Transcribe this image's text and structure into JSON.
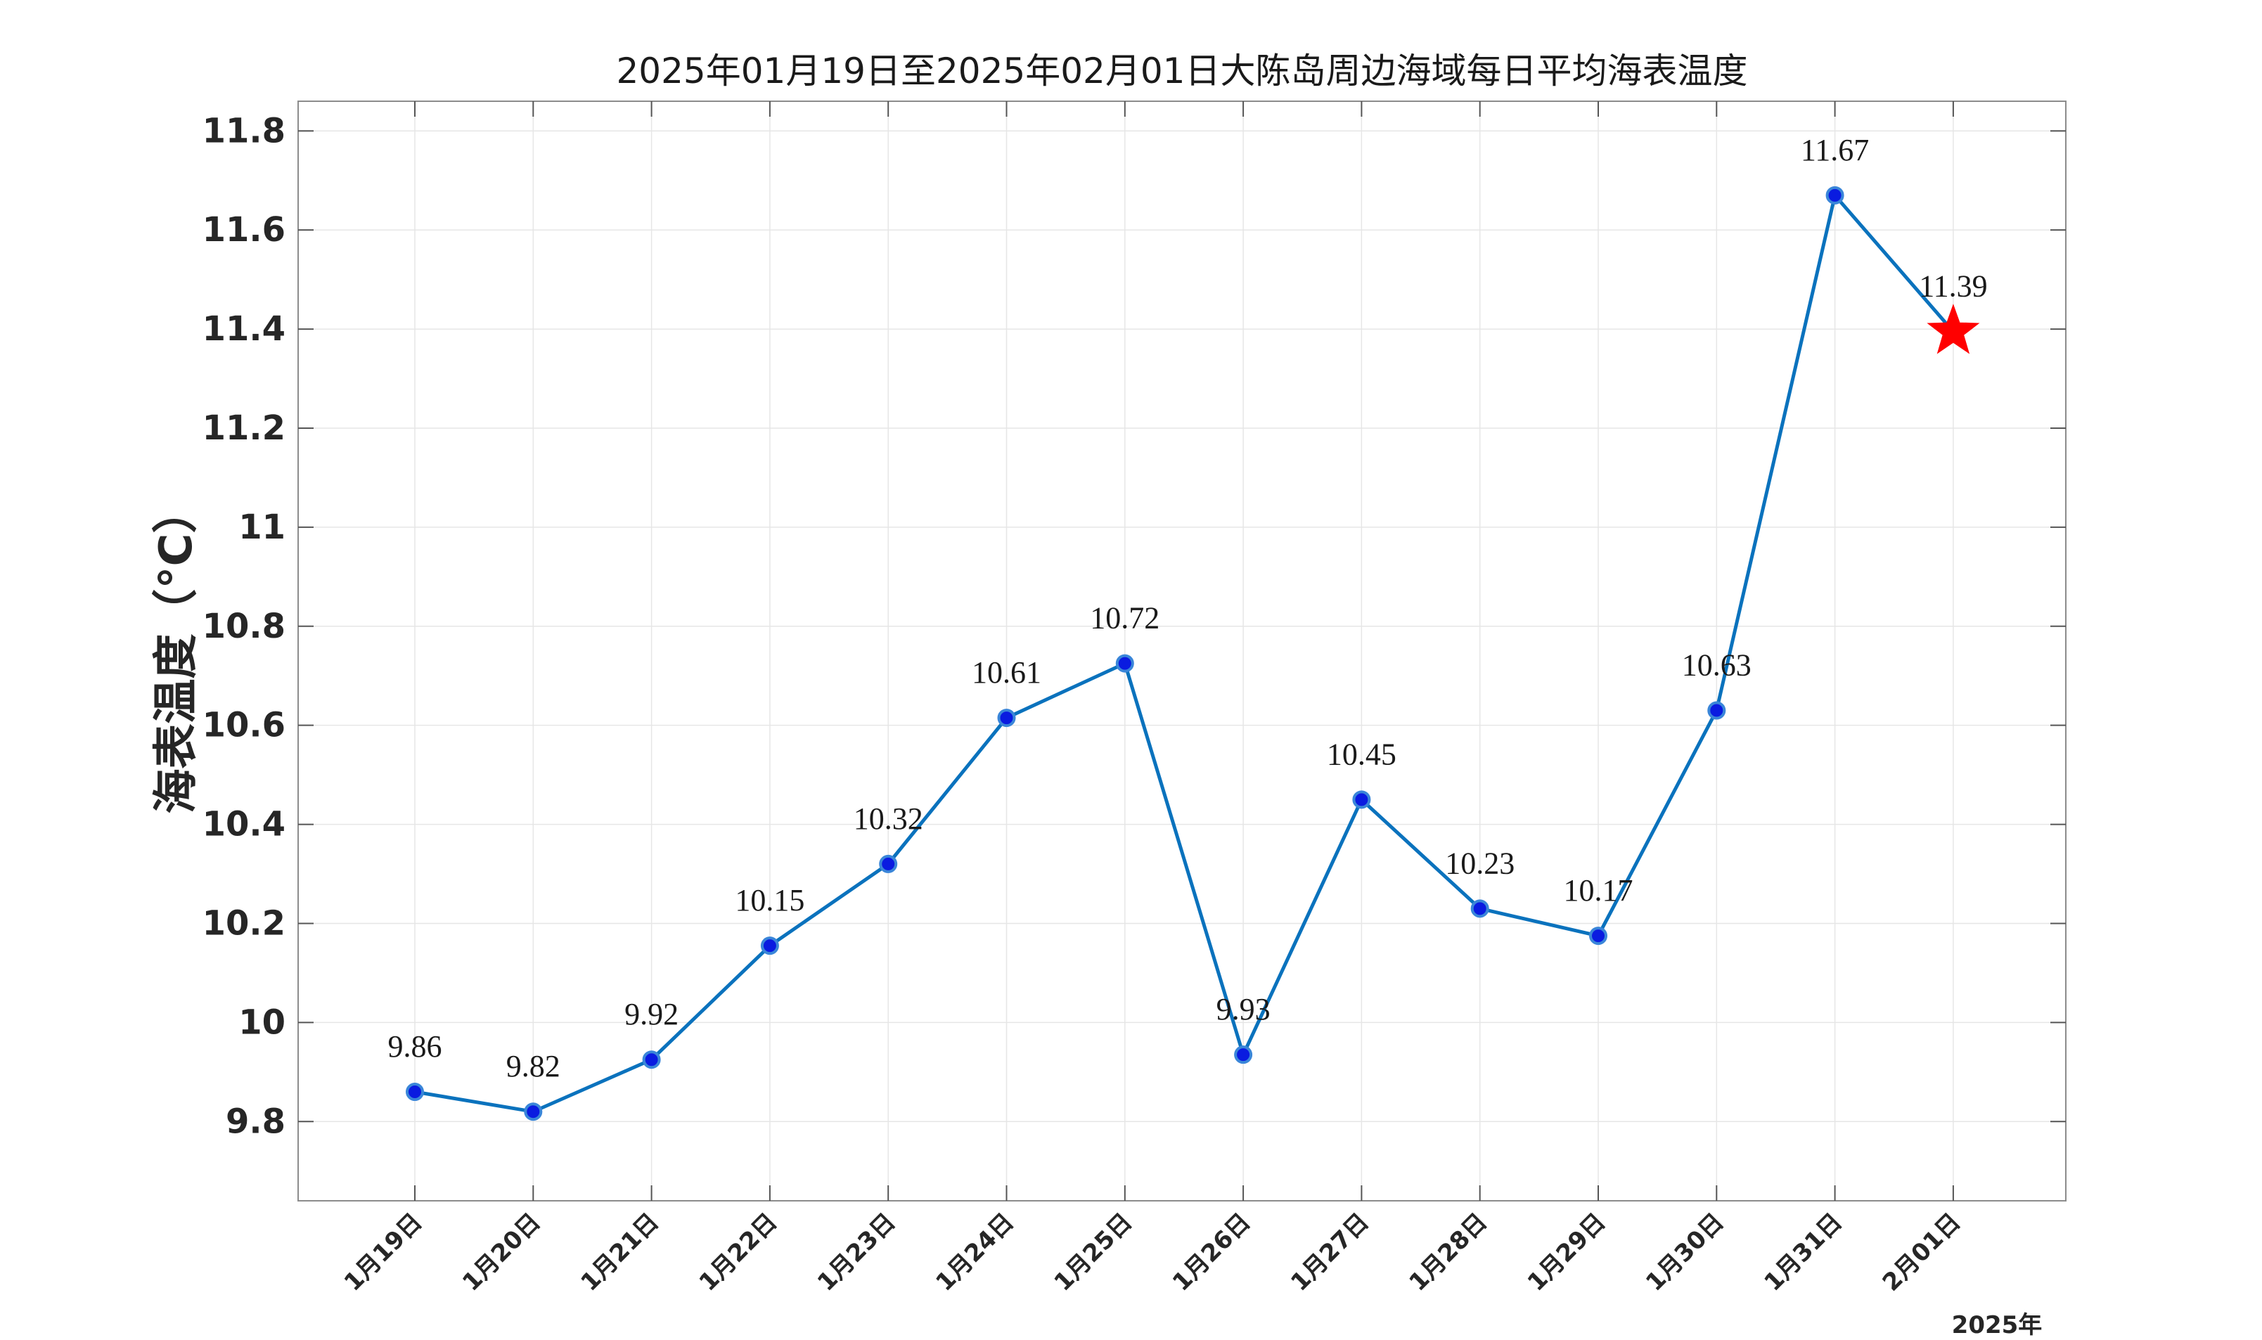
{
  "chart_data": {
    "type": "line",
    "title": "2025年01月19日至2025年02月01日大陈岛周边海域每日平均海表温度",
    "ylabel": "海表温度（°C）",
    "xlabel": "",
    "year_note": "2025年",
    "ylim": [
      9.64,
      11.86
    ],
    "yticks": [
      9.8,
      10,
      10.2,
      10.4,
      10.6,
      10.8,
      11,
      11.2,
      11.4,
      11.6,
      11.8
    ],
    "ytick_labels": [
      "9.8",
      "10",
      "10.2",
      "10.4",
      "10.6",
      "10.8",
      "11",
      "11.2",
      "11.4",
      "11.6",
      "11.8"
    ],
    "categories": [
      "1月19日",
      "1月20日",
      "1月21日",
      "1月22日",
      "1月23日",
      "1月24日",
      "1月25日",
      "1月26日",
      "1月27日",
      "1月28日",
      "1月29日",
      "1月30日",
      "1月31日",
      "2月01日"
    ],
    "values": [
      9.86,
      9.82,
      9.925,
      10.155,
      10.32,
      10.615,
      10.725,
      9.935,
      10.45,
      10.23,
      10.175,
      10.63,
      11.67,
      11.395
    ],
    "value_labels": [
      "9.86",
      "9.82",
      "9.92",
      "10.15",
      "10.32",
      "10.61",
      "10.72",
      "9.93",
      "10.45",
      "10.23",
      "10.17",
      "10.63",
      "11.67",
      "11.39"
    ],
    "forecast_index": 13,
    "grid": true,
    "colors": {
      "line": "#0a72bd",
      "marker_fill": "#0a1be0",
      "marker_edge": "#3a86d9",
      "forecast_star": "#ff0000",
      "grid": "#e6e6e6",
      "axis": "#8c8c8c"
    }
  }
}
